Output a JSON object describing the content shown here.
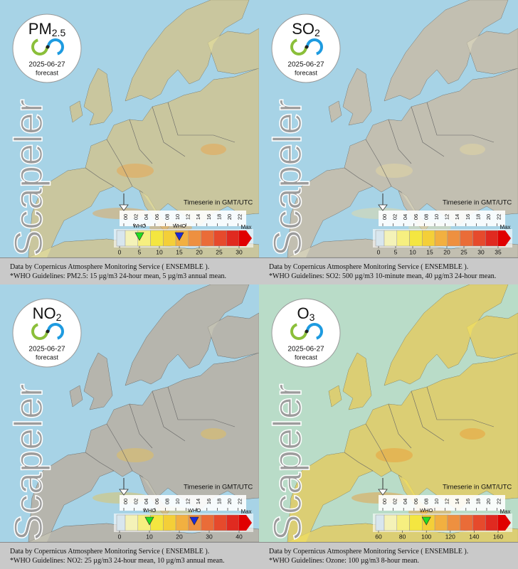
{
  "brand": "Scapeler",
  "date": "2025-06-27",
  "forecast_label": "forecast",
  "timeline": {
    "label": "Timeserie in GMT/UTC",
    "hours": [
      "00",
      "02",
      "04",
      "06",
      "08",
      "10",
      "12",
      "14",
      "16",
      "18",
      "20",
      "22"
    ]
  },
  "who_label": "WHO",
  "max_label": "Max",
  "panels": [
    {
      "pollutant": {
        "main": "PM",
        "sub": "2.5"
      },
      "scale": [
        0,
        5,
        10,
        15,
        20,
        25,
        30
      ],
      "who": [
        5,
        15
      ],
      "footer": [
        "Data by Copernicus Atmosphere Monitoring Service ( ENSEMBLE ).",
        "*WHO Guidelines: PM2.5: 15 µg/m3 24-hour mean, 5 µg/m3 annual mean."
      ]
    },
    {
      "pollutant": {
        "main": "SO",
        "sub": "2"
      },
      "scale": [
        0,
        5,
        10,
        15,
        20,
        25,
        30,
        35
      ],
      "who": [],
      "footer": [
        "Data by Copernicus Atmosphere Monitoring Service ( ENSEMBLE ).",
        "*WHO Guidelines: SO2: 500 µg/m3 10-minute mean, 40 µg/m3 24-hour mean."
      ]
    },
    {
      "pollutant": {
        "main": "NO",
        "sub": "2"
      },
      "scale": [
        0,
        10,
        20,
        30,
        40
      ],
      "who": [
        10,
        25
      ],
      "footer": [
        "Data by Copernicus Atmosphere Monitoring Service ( ENSEMBLE ).",
        "*WHO Guidelines: NO2: 25 µg/m3 24-hour mean, 10 µg/m3 annual mean."
      ]
    },
    {
      "pollutant": {
        "main": "O",
        "sub": "3"
      },
      "scale": [
        60,
        80,
        100,
        120,
        140,
        160
      ],
      "who": [
        100
      ],
      "footer": [
        "Data by Copernicus Atmosphere Monitoring Service ( ENSEMBLE ).",
        "*WHO Guidelines: Ozone: 100 µg/m3 8-hour mean."
      ]
    }
  ]
}
